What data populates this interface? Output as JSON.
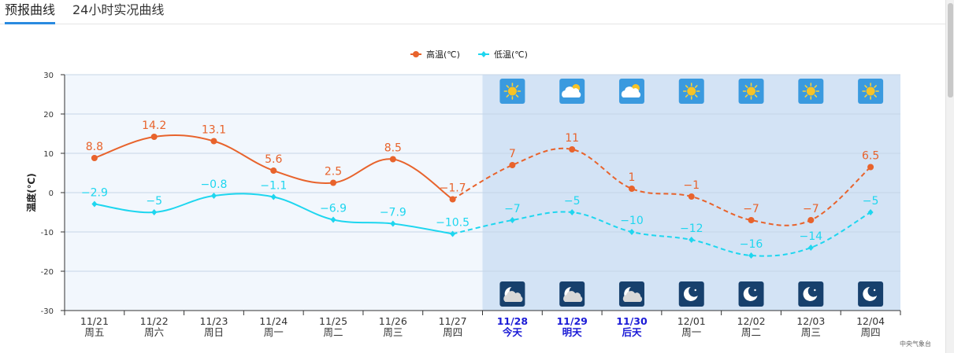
{
  "tabs": [
    {
      "label": "预报曲线",
      "active": true
    },
    {
      "label": "24小时实况曲线",
      "active": false
    }
  ],
  "colors": {
    "high": "#e8632c",
    "low": "#1ed6ef",
    "past_bg": "#f2f7fd",
    "future_bg": "#d3e3f5",
    "highlight_text": "#1a1ad6"
  },
  "source_note": "中央气象台",
  "chart_data": {
    "type": "line",
    "ylabel": "温度(℃)",
    "ylim": [
      -30,
      30
    ],
    "yticks": [
      30,
      20,
      10,
      0,
      -10,
      -20,
      -30
    ],
    "grid": true,
    "legend_position": "top-center",
    "categories": [
      "11/21",
      "11/22",
      "11/23",
      "11/24",
      "11/25",
      "11/26",
      "11/27",
      "11/28",
      "11/29",
      "11/30",
      "12/01",
      "12/02",
      "12/03",
      "12/04"
    ],
    "weekdays": [
      "周五",
      "周六",
      "周日",
      "周一",
      "周二",
      "周三",
      "周四",
      "今天",
      "明天",
      "后天",
      "周一",
      "周二",
      "周三",
      "周四"
    ],
    "highlighted_categories": [
      "11/28",
      "11/29",
      "11/30"
    ],
    "forecast_start_index": 7,
    "series": [
      {
        "name": "高温(℃)",
        "values": [
          8.8,
          14.2,
          13.1,
          5.6,
          2.5,
          8.5,
          -1.7,
          7,
          11,
          1,
          -1,
          -7,
          -7,
          6.5
        ],
        "value_labels": [
          "8.8",
          "14.2",
          "13.1",
          "5.6",
          "2.5",
          "8.5",
          "−1.7",
          "7",
          "11",
          "1",
          "−1",
          "−7",
          "−7",
          "6.5"
        ]
      },
      {
        "name": "低温(℃)",
        "values": [
          -2.9,
          -5,
          -0.8,
          -1.1,
          -6.9,
          -7.9,
          -10.5,
          -7,
          -5,
          -10,
          -12,
          -16,
          -14,
          -5
        ],
        "value_labels": [
          "−2.9",
          "−5",
          "−0.8",
          "−1.1",
          "−6.9",
          "−7.9",
          "−10.5",
          "−7",
          "−5",
          "−10",
          "−12",
          "−16",
          "−14",
          "−5"
        ]
      }
    ],
    "day_weather_icons": [
      "sunny-icon",
      "partly-cloudy-icon",
      "partly-cloudy-icon",
      "sunny-icon",
      "sunny-icon",
      "sunny-icon",
      "sunny-icon"
    ],
    "night_weather_icons": [
      "cloudy-night-icon",
      "cloudy-night-icon",
      "cloudy-night-icon",
      "clear-night-icon",
      "clear-night-icon",
      "clear-night-icon",
      "clear-night-icon"
    ]
  }
}
